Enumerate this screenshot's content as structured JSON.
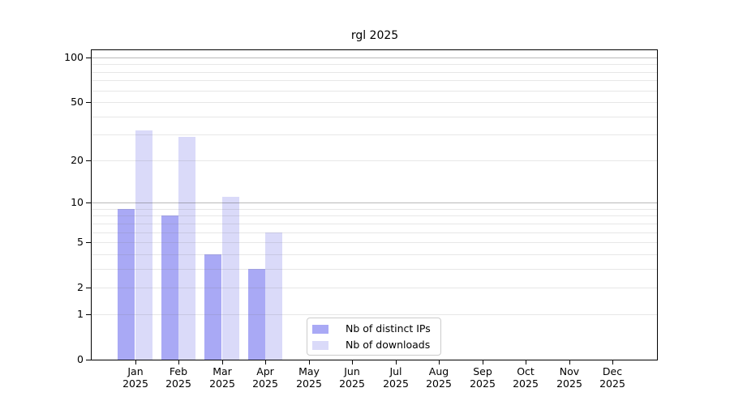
{
  "title": "rgl 2025",
  "chart_data": {
    "type": "bar",
    "title": "rgl 2025",
    "categories": [
      "Jan",
      "Feb",
      "Mar",
      "Apr",
      "May",
      "Jun",
      "Jul",
      "Aug",
      "Sep",
      "Oct",
      "Nov",
      "Dec"
    ],
    "category_year_label": "2025",
    "series": [
      {
        "name": "Nb of distinct IPs",
        "color": "#a9a9f5",
        "values": [
          9,
          8,
          4,
          3,
          0,
          0,
          0,
          0,
          0,
          0,
          0,
          0
        ]
      },
      {
        "name": "Nb of downloads",
        "color": "#dadaf9",
        "values": [
          32,
          29,
          11,
          6,
          0,
          0,
          0,
          0,
          0,
          0,
          0,
          0
        ]
      }
    ],
    "y_axis": {
      "scale": "log10(1+x)",
      "tick_values": [
        0,
        1,
        2,
        5,
        10,
        20,
        50,
        100
      ],
      "minor_gridlines": [
        1,
        2,
        3,
        4,
        5,
        6,
        7,
        8,
        9,
        20,
        30,
        40,
        50,
        60,
        70,
        80,
        90
      ],
      "major_gridlines": [
        10,
        100
      ],
      "range": [
        0,
        112
      ]
    },
    "x_axis": {
      "tick_per_month": true
    },
    "grid": true,
    "legend_position": "inside-bottom-center"
  },
  "legend": {
    "items": [
      {
        "label": "Nb of distinct IPs",
        "swatch_color": "#a9a9f5"
      },
      {
        "label": "Nb of downloads",
        "swatch_color": "#dadaf9"
      }
    ]
  },
  "colors": {
    "bar_distinct_ips": "#a9a9f5",
    "bar_downloads": "#dadaf9",
    "minor_grid": "#e8e8e8",
    "major_grid": "#c2c2c2",
    "axis": "#000000",
    "background": "#ffffff",
    "legend_border": "#cccccc",
    "text": "#000000"
  }
}
